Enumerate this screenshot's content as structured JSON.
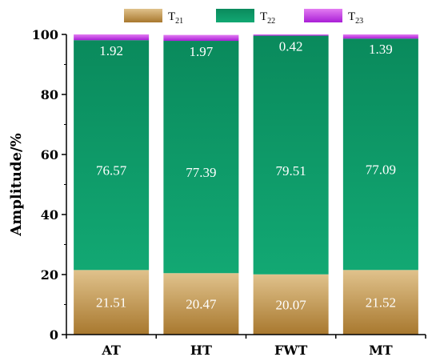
{
  "chart_data": {
    "type": "bar",
    "stacked": true,
    "categories": [
      "AT",
      "HT",
      "FWT",
      "MT"
    ],
    "series": [
      {
        "name": "T",
        "sub": "21",
        "color": "#b8893f",
        "values": [
          21.51,
          20.47,
          20.07,
          21.52
        ]
      },
      {
        "name": "T",
        "sub": "22",
        "color": "#0f9a6c",
        "values": [
          76.57,
          77.39,
          79.51,
          77.09
        ]
      },
      {
        "name": "T",
        "sub": "23",
        "color": "#c43ce6",
        "values": [
          1.92,
          1.97,
          0.42,
          1.39
        ]
      }
    ],
    "ylabel": "Amplitude/%",
    "ylim": [
      0,
      100
    ],
    "yticks": [
      0,
      20,
      40,
      60,
      80,
      100
    ],
    "legend_position": "top",
    "grid": false
  }
}
